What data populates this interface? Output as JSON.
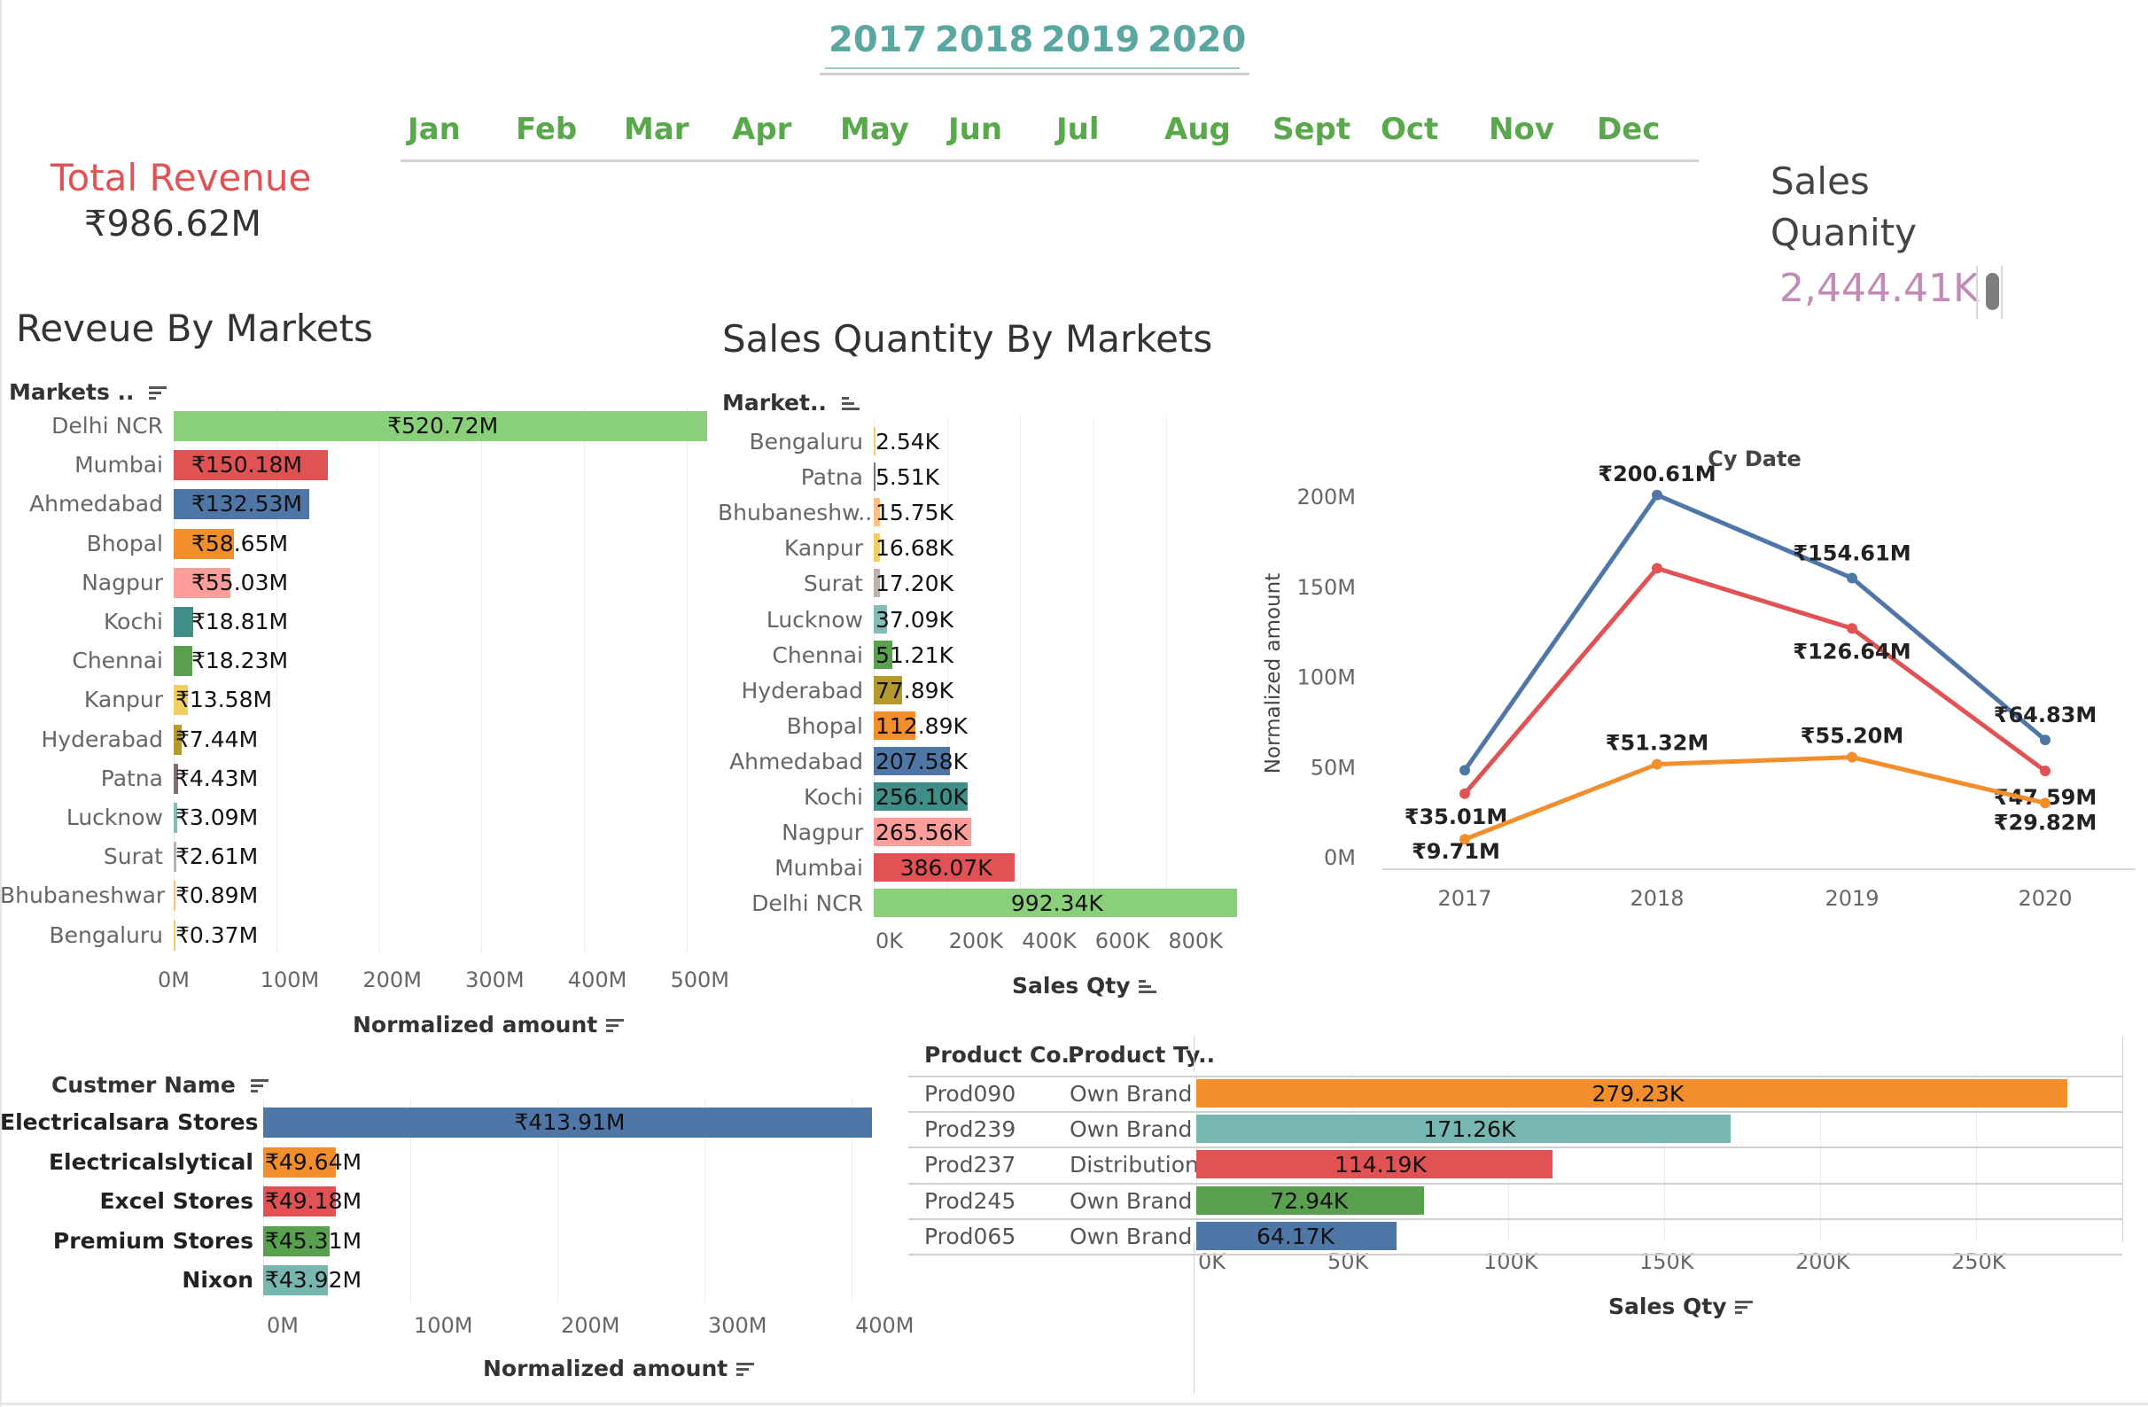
{
  "years": [
    "2017",
    "2018",
    "2019",
    "2020"
  ],
  "months": [
    "Jan",
    "Feb",
    "Mar",
    "Apr",
    "May",
    "Jun",
    "Jul",
    "Aug",
    "Sept",
    "Oct",
    "Nov",
    "Dec"
  ],
  "kpis": {
    "total_revenue_label": "Total Revenue",
    "total_revenue_value": "₹986.62M",
    "sales_quantity_label": "Sales Quanity",
    "sales_quantity_value": "2,444.41K"
  },
  "colors": {
    "green": "#8ad07a",
    "red": "#e05254",
    "blue": "#4e77a8",
    "orange": "#f28e2c",
    "pink": "#ff9d9a",
    "teal": "#3f8f88",
    "darkgreen": "#59a14f",
    "yellow": "#f2cf63",
    "olive": "#b6992d",
    "gray": "#79706e",
    "lightblue": "#86bcb6",
    "lightgray": "#bab0ac",
    "tealmid": "#76b7b2",
    "lightorange": "#ffbe7d"
  },
  "revenue_by_markets": {
    "title": "Reveue By Markets",
    "column_header": "Markets ..",
    "axis_title": "Normalized amount",
    "ticks": [
      "0M",
      "100M",
      "200M",
      "300M",
      "400M",
      "500M"
    ],
    "max": 520.72,
    "rows": [
      {
        "name": "Delhi NCR",
        "value": 520.72,
        "label": "₹520.72M",
        "color": "#8ad07a"
      },
      {
        "name": "Mumbai",
        "value": 150.18,
        "label": "₹150.18M",
        "color": "#e05254"
      },
      {
        "name": "Ahmedabad",
        "value": 132.53,
        "label": "₹132.53M",
        "color": "#4e77a8"
      },
      {
        "name": "Bhopal",
        "value": 58.65,
        "label": "₹58.65M",
        "color": "#f28e2c"
      },
      {
        "name": "Nagpur",
        "value": 55.03,
        "label": "₹55.03M",
        "color": "#ff9d9a"
      },
      {
        "name": "Kochi",
        "value": 18.81,
        "label": "₹18.81M",
        "color": "#3f8f88"
      },
      {
        "name": "Chennai",
        "value": 18.23,
        "label": "₹18.23M",
        "color": "#59a14f"
      },
      {
        "name": "Kanpur",
        "value": 13.58,
        "label": "₹13.58M",
        "color": "#f2cf63"
      },
      {
        "name": "Hyderabad",
        "value": 7.44,
        "label": "₹7.44M",
        "color": "#b6992d"
      },
      {
        "name": "Patna",
        "value": 4.43,
        "label": "₹4.43M",
        "color": "#79706e"
      },
      {
        "name": "Lucknow",
        "value": 3.09,
        "label": "₹3.09M",
        "color": "#86bcb6"
      },
      {
        "name": "Surat",
        "value": 2.61,
        "label": "₹2.61M",
        "color": "#bab0ac"
      },
      {
        "name": "Bhubaneshwar",
        "value": 0.89,
        "label": "₹0.89M",
        "color": "#ffbe7d"
      },
      {
        "name": "Bengaluru",
        "value": 0.37,
        "label": "₹0.37M",
        "color": "#f2cf63"
      }
    ]
  },
  "sales_qty_by_markets": {
    "title": "Sales Quantity By Markets",
    "column_header": "Market..",
    "axis_title": "Sales Qty",
    "ticks": [
      "0K",
      "200K",
      "400K",
      "600K",
      "800K"
    ],
    "rows": [
      {
        "name": "Bengaluru",
        "value": 2.54,
        "label": "2.54K",
        "color": "#f2cf63"
      },
      {
        "name": "Patna",
        "value": 5.51,
        "label": "5.51K",
        "color": "#79706e"
      },
      {
        "name": "Bhubaneshw..",
        "value": 15.75,
        "label": "15.75K",
        "color": "#ffbe7d"
      },
      {
        "name": "Kanpur",
        "value": 16.68,
        "label": "16.68K",
        "color": "#f2cf63"
      },
      {
        "name": "Surat",
        "value": 17.2,
        "label": "17.20K",
        "color": "#bab0ac"
      },
      {
        "name": "Lucknow",
        "value": 37.09,
        "label": "37.09K",
        "color": "#86bcb6"
      },
      {
        "name": "Chennai",
        "value": 51.21,
        "label": "51.21K",
        "color": "#59a14f"
      },
      {
        "name": "Hyderabad",
        "value": 77.89,
        "label": "77.89K",
        "color": "#b6992d"
      },
      {
        "name": "Bhopal",
        "value": 112.89,
        "label": "112.89K",
        "color": "#f28e2c"
      },
      {
        "name": "Ahmedabad",
        "value": 207.58,
        "label": "207.58K",
        "color": "#4e77a8"
      },
      {
        "name": "Kochi",
        "value": 256.1,
        "label": "256.10K",
        "color": "#3f8f88"
      },
      {
        "name": "Nagpur",
        "value": 265.56,
        "label": "265.56K",
        "color": "#ff9d9a"
      },
      {
        "name": "Mumbai",
        "value": 386.07,
        "label": "386.07K",
        "color": "#e05254"
      },
      {
        "name": "Delhi NCR",
        "value": 992.34,
        "label": "992.34K",
        "color": "#8ad07a"
      }
    ]
  },
  "chart_data": [
    {
      "type": "line",
      "title": "Cy Date",
      "ylabel": "Normalized amount",
      "x": [
        "2017",
        "2018",
        "2019",
        "2020"
      ],
      "y_ticks": [
        "0M",
        "50M",
        "100M",
        "150M",
        "200M"
      ],
      "ylim": [
        0,
        200
      ],
      "series": [
        {
          "color": "#4e77a8",
          "values": [
            48,
            200.61,
            154.61,
            64.83
          ],
          "labels": [
            "",
            "₹200.61M",
            "₹154.61M",
            "₹64.83M"
          ]
        },
        {
          "color": "#e05254",
          "values": [
            35.01,
            160,
            126.64,
            47.59
          ],
          "labels": [
            "₹35.01M",
            "",
            "₹126.64M",
            "₹47.59M"
          ]
        },
        {
          "color": "#f28e2c",
          "values": [
            9.71,
            51.32,
            55.2,
            29.82
          ],
          "labels": [
            "₹9.71M",
            "₹51.32M",
            "₹55.20M",
            "₹29.82M"
          ]
        }
      ]
    }
  ],
  "customers": {
    "column_header": "Custmer Name",
    "axis_title": "Normalized amount",
    "ticks": [
      "0M",
      "100M",
      "200M",
      "300M",
      "400M"
    ],
    "rows": [
      {
        "name": "Electricalsara Stores",
        "value": 413.91,
        "label": "₹413.91M",
        "color": "#4e77a8"
      },
      {
        "name": "Electricalslytical",
        "value": 49.64,
        "label": "₹49.64M",
        "color": "#f28e2c"
      },
      {
        "name": "Excel Stores",
        "value": 49.18,
        "label": "₹49.18M",
        "color": "#e05254"
      },
      {
        "name": "Premium Stores",
        "value": 45.31,
        "label": "₹45.31M",
        "color": "#59a14f"
      },
      {
        "name": "Nixon",
        "value": 43.92,
        "label": "₹43.92M",
        "color": "#76b7b2"
      }
    ]
  },
  "products": {
    "column_headers": [
      "Product Co..",
      "Product Ty.."
    ],
    "axis_title": "Sales Qty",
    "ticks": [
      "0K",
      "50K",
      "100K",
      "150K",
      "200K",
      "250K"
    ],
    "rows": [
      {
        "code": "Prod090",
        "type": "Own Brand",
        "value": 279.23,
        "label": "279.23K",
        "color": "#f28e2c"
      },
      {
        "code": "Prod239",
        "type": "Own Brand",
        "value": 171.26,
        "label": "171.26K",
        "color": "#76b7b2"
      },
      {
        "code": "Prod237",
        "type": "Distribution",
        "value": 114.19,
        "label": "114.19K",
        "color": "#e05254"
      },
      {
        "code": "Prod245",
        "type": "Own Brand",
        "value": 72.94,
        "label": "72.94K",
        "color": "#59a14f"
      },
      {
        "code": "Prod065",
        "type": "Own Brand",
        "value": 64.17,
        "label": "64.17K",
        "color": "#4e77a8"
      }
    ]
  }
}
